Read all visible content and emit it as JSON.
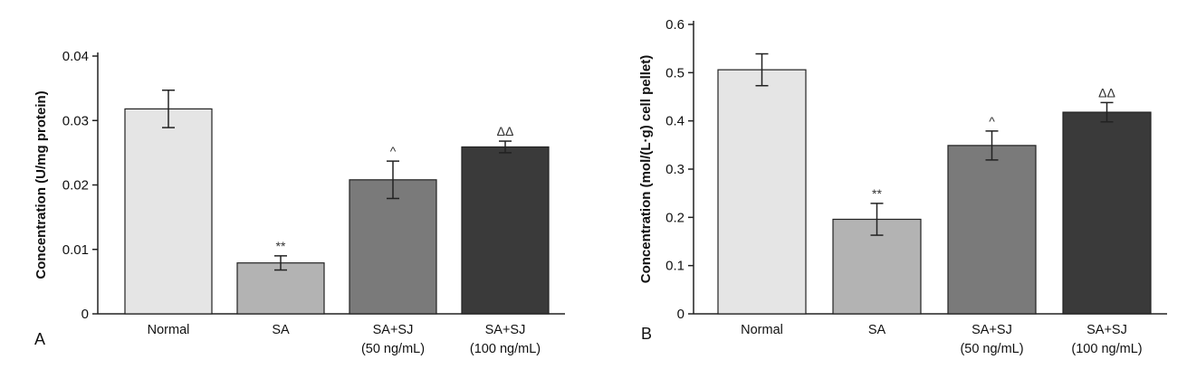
{
  "chart_data": [
    {
      "type": "bar",
      "panel_label": "A",
      "ylabel": "Concentration (U/mg protein)",
      "xlabel": "",
      "ylim": [
        0,
        0.04
      ],
      "yticks": [
        "0",
        "0.01",
        "0.02",
        "0.03",
        "0.04"
      ],
      "categories": [
        [
          "Normal"
        ],
        [
          "SA"
        ],
        [
          "SA+SJ",
          "(50 ng/mL)"
        ],
        [
          "SA+SJ",
          "(100 ng/mL)"
        ]
      ],
      "values": [
        0.0318,
        0.0079,
        0.0208,
        0.0259
      ],
      "errors": [
        0.0029,
        0.0011,
        0.0029,
        0.0009
      ],
      "significance": [
        "",
        "**",
        "^",
        "ΔΔ"
      ],
      "colors": [
        "#e5e5e5",
        "#b3b3b3",
        "#7a7a7a",
        "#3a3a3a"
      ],
      "grid": false
    },
    {
      "type": "bar",
      "panel_label": "B",
      "ylabel": "Concentration (mol/(L·g) cell pellet)",
      "xlabel": "",
      "ylim": [
        0,
        0.6
      ],
      "yticks": [
        "0",
        "0.1",
        "0.2",
        "0.3",
        "0.4",
        "0.5",
        "0.6"
      ],
      "categories": [
        [
          "Normal"
        ],
        [
          "SA"
        ],
        [
          "SA+SJ",
          "(50 ng/mL)"
        ],
        [
          "SA+SJ",
          "(100 ng/mL)"
        ]
      ],
      "values": [
        0.506,
        0.196,
        0.349,
        0.418
      ],
      "errors": [
        0.033,
        0.033,
        0.03,
        0.02
      ],
      "significance": [
        "",
        "**",
        "^",
        "ΔΔ"
      ],
      "colors": [
        "#e5e5e5",
        "#b3b3b3",
        "#7a7a7a",
        "#3a3a3a"
      ],
      "grid": false
    }
  ]
}
